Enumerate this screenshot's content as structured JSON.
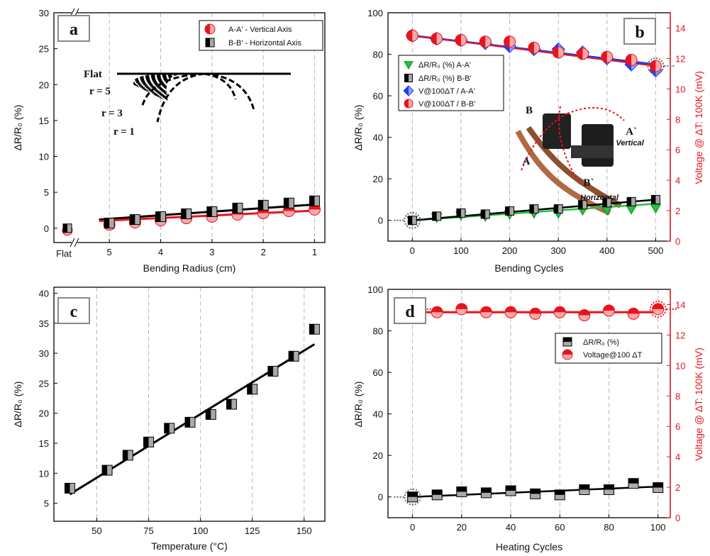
{
  "colors": {
    "red": "#e8141c",
    "black": "#111111",
    "gray": "#a9a9a9",
    "green": "#22c43a",
    "blue": "#1a3cff",
    "grid": "#b8b8b8"
  },
  "chart_data": [
    {
      "panel": "a",
      "type": "scatter",
      "xlabel": "Bending Radius (cm)",
      "ylabel": "ΔR/R₀ (%)",
      "xticks": [
        "Flat",
        "5",
        "4",
        "3",
        "2",
        "1"
      ],
      "xlim": [
        5.5,
        0.8
      ],
      "ylim": [
        -2,
        30
      ],
      "yticks": [
        0,
        5,
        10,
        15,
        20,
        25,
        30
      ],
      "grid": "vertical dashed",
      "legend": {
        "position": "top-right",
        "entries": [
          "A-A' - Vertical Axis",
          "B-B' - Horizontal Axis"
        ]
      },
      "inset_labels": [
        "Flat",
        "r = 5",
        "r = 3",
        "r = 1"
      ],
      "flat_point": {
        "A-A'": -0.3,
        "B-B'": 0.0
      },
      "series": [
        {
          "name": "A-A' - Vertical Axis",
          "x": [
            5,
            4.5,
            4,
            3.5,
            3,
            2.5,
            2,
            1.5,
            1
          ],
          "y": [
            0.5,
            0.8,
            1.1,
            1.4,
            1.6,
            1.9,
            2.1,
            2.4,
            2.6
          ],
          "fit": [
            [
              5.2,
              1.0
            ],
            [
              1,
              2.45
            ]
          ]
        },
        {
          "name": "B-B' - Horizontal Axis",
          "x": [
            5,
            4.5,
            4,
            3.5,
            3,
            2.5,
            2,
            1.5,
            1
          ],
          "y": [
            0.7,
            1.2,
            1.6,
            2.0,
            2.3,
            2.8,
            3.2,
            3.5,
            3.8
          ],
          "fit": [
            [
              5.2,
              1.2
            ],
            [
              1,
              3.3
            ]
          ]
        }
      ]
    },
    {
      "panel": "b",
      "type": "scatter",
      "xlabel": "Bending Cycles",
      "ylabel": "ΔR/R₀ (%)",
      "ylabel_right": "Voltage @ ΔT: 100K (mV)",
      "xlim": [
        -50,
        530
      ],
      "xticks": [
        0,
        100,
        200,
        300,
        400,
        500
      ],
      "ylim": [
        -10,
        100
      ],
      "yticks": [
        0,
        20,
        40,
        60,
        80,
        100
      ],
      "ylim_right": [
        0,
        15
      ],
      "yticks_right": [
        0,
        2,
        4,
        6,
        8,
        10,
        12,
        14
      ],
      "legend": {
        "position": "left",
        "entries": [
          "ΔR/R₀ (%) A-A'",
          "ΔR/R₀ (%) B-B'",
          "V@100ΔT / A-A'",
          "V@100ΔT / B-B'"
        ]
      },
      "inset_labels": [
        "B",
        "A",
        "A`",
        "B`",
        "Vertical",
        "Horizontal"
      ],
      "series": [
        {
          "name": "ΔR/R₀ (%) A-A'",
          "axis": "left",
          "x": [
            0,
            50,
            100,
            150,
            200,
            250,
            300,
            350,
            400,
            450,
            500
          ],
          "y": [
            0,
            1.5,
            2.5,
            2,
            3,
            3.5,
            3.5,
            5,
            5,
            5.5,
            6
          ],
          "fit": [
            [
              0,
              0
            ],
            [
              500,
              8
            ]
          ]
        },
        {
          "name": "ΔR/R₀ (%) B-B'",
          "axis": "left",
          "x": [
            0,
            50,
            100,
            150,
            200,
            250,
            300,
            350,
            400,
            450,
            500
          ],
          "y": [
            0,
            2,
            3.5,
            3,
            4.5,
            5.5,
            5.5,
            7.5,
            8.5,
            9,
            10
          ],
          "fit": [
            [
              0,
              0
            ],
            [
              500,
              10
            ]
          ]
        },
        {
          "name": "V@100ΔT / A-A'",
          "axis": "right",
          "x": [
            0,
            50,
            100,
            150,
            200,
            250,
            300,
            350,
            400,
            450,
            500
          ],
          "y": [
            13.5,
            13.3,
            13.2,
            13,
            12.8,
            12.6,
            12.6,
            12.4,
            12,
            11.6,
            11.2
          ],
          "fit": [
            [
              0,
              13.5
            ],
            [
              500,
              11.6
            ]
          ]
        },
        {
          "name": "V@100ΔT / B-B'",
          "axis": "right",
          "x": [
            0,
            50,
            100,
            150,
            200,
            250,
            300,
            350,
            400,
            450,
            500
          ],
          "y": [
            13.5,
            13.3,
            13.2,
            13.1,
            13.1,
            12.7,
            12.4,
            12.3,
            12.1,
            11.9,
            11.5
          ],
          "fit": [
            [
              0,
              13.5
            ],
            [
              500,
              11.5
            ]
          ]
        }
      ]
    },
    {
      "panel": "c",
      "type": "scatter",
      "xlabel": "Temperature (°C)",
      "ylabel": "ΔR/R₀ (%)",
      "xlim": [
        30,
        160
      ],
      "xticks": [
        50,
        75,
        100,
        125,
        150
      ],
      "ylim": [
        2,
        41
      ],
      "yticks": [
        5,
        10,
        15,
        20,
        25,
        30,
        35,
        40
      ],
      "series": [
        {
          "name": "",
          "x": [
            37,
            55,
            65,
            75,
            85,
            95,
            105,
            115,
            125,
            135,
            145,
            155
          ],
          "y": [
            7.5,
            10.5,
            13,
            15.2,
            17.5,
            18.5,
            19.8,
            21.5,
            24,
            27,
            29.5,
            34
          ],
          "fit": [
            [
              37,
              6.5
            ],
            [
              155,
              31.5
            ]
          ]
        }
      ]
    },
    {
      "panel": "d",
      "type": "scatter",
      "xlabel": "Heating Cycles",
      "ylabel": "ΔR/R₀ (%)",
      "ylabel_right": "Voltage @ ΔT: 100K (mV)",
      "xlim": [
        -10,
        105
      ],
      "xticks": [
        0,
        20,
        40,
        60,
        80,
        100
      ],
      "ylim": [
        -10,
        100
      ],
      "yticks": [
        0,
        20,
        40,
        60,
        80,
        100
      ],
      "ylim_right": [
        0,
        15
      ],
      "yticks_right": [
        0,
        2,
        4,
        6,
        8,
        10,
        12,
        14
      ],
      "legend": {
        "position": "top-right",
        "entries": [
          "ΔR/R₀ (%)",
          "Voltage@100 ΔT"
        ]
      },
      "series": [
        {
          "name": "ΔR/R₀ (%)",
          "axis": "left",
          "x": [
            0,
            10,
            20,
            30,
            40,
            50,
            60,
            70,
            80,
            90,
            100
          ],
          "y": [
            0,
            1,
            2.5,
            2,
            3,
            1.5,
            1,
            3.5,
            3.5,
            6.5,
            4.5
          ],
          "fit": [
            [
              0,
              0
            ],
            [
              100,
              5
            ]
          ]
        },
        {
          "name": "Voltage@100 ΔT",
          "axis": "right",
          "x": [
            0,
            10,
            20,
            30,
            40,
            50,
            60,
            70,
            80,
            90,
            100
          ],
          "y": [
            13.7,
            13.5,
            13.7,
            13.5,
            13.5,
            13.4,
            13.5,
            13.3,
            13.6,
            13.4,
            13.7
          ],
          "fit": [
            [
              0,
              13.5
            ],
            [
              100,
              13.5
            ]
          ]
        }
      ]
    }
  ]
}
